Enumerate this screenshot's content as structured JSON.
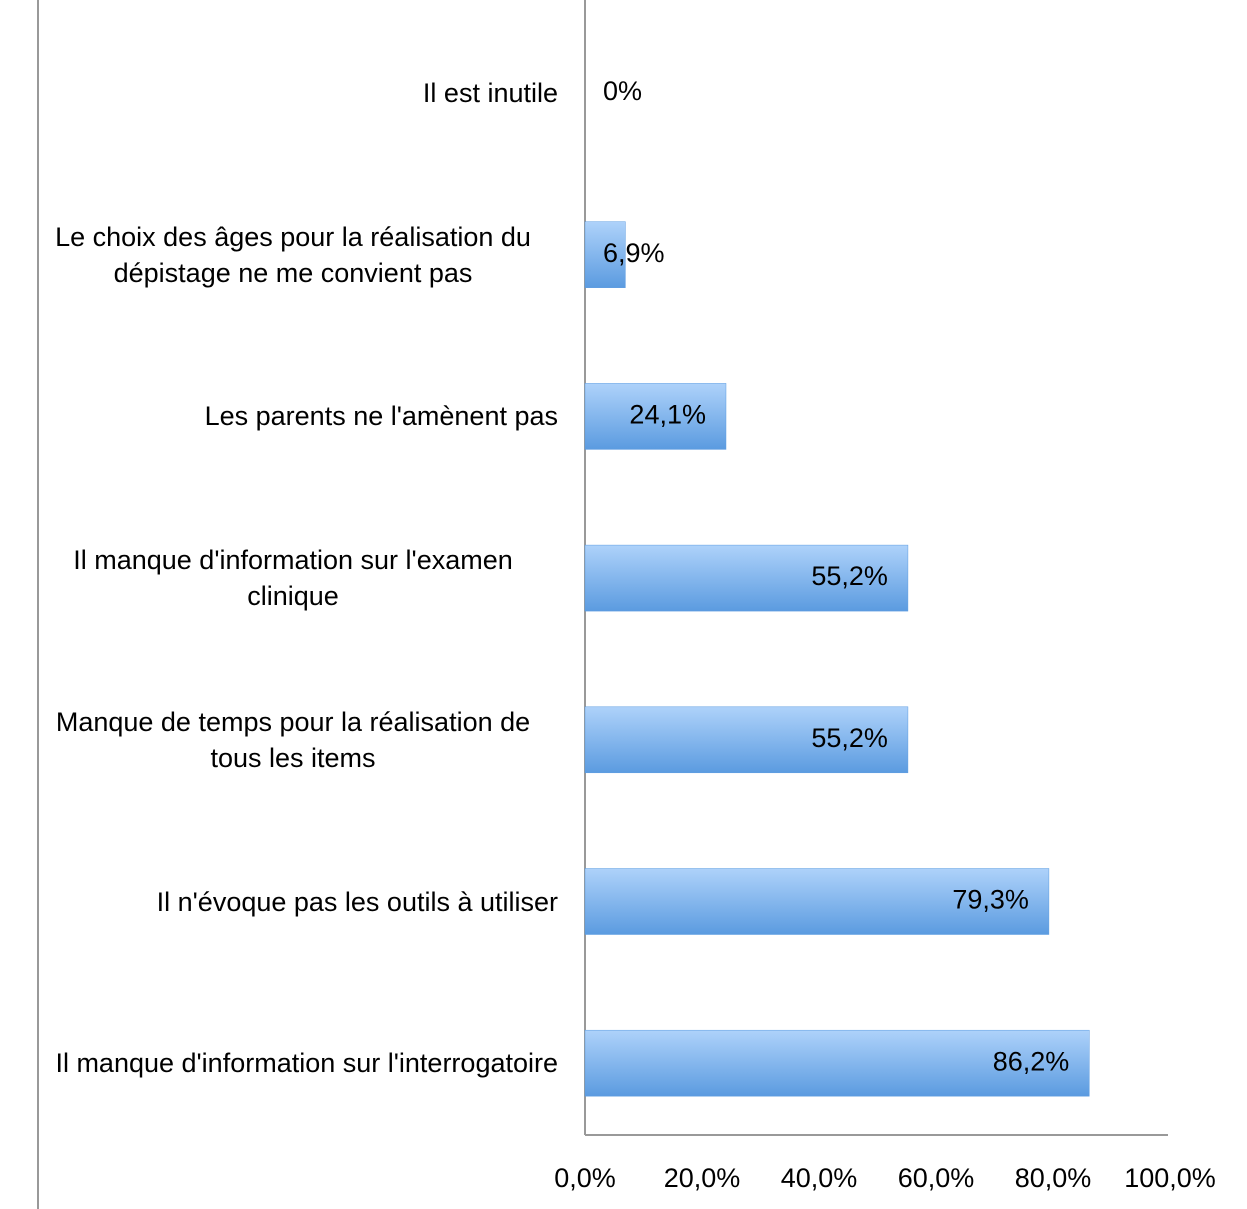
{
  "chart_data": {
    "type": "hbar",
    "categories": [
      "Il est inutile",
      "Le choix des âges pour la réalisation du dépistage ne me convient pas",
      "Les parents ne l'amènent pas",
      "Il manque d'information sur l'examen clinique",
      "Manque de temps pour la réalisation de tous les items",
      "Il n'évoque pas les outils à utiliser",
      "Il manque d'information sur l'interrogatoire"
    ],
    "values": [
      0,
      6.9,
      24.1,
      55.2,
      55.2,
      79.3,
      86.2
    ],
    "value_labels": [
      "0%",
      "6,9%",
      "24,1%",
      "55,2%",
      "55,2%",
      "79,3%",
      "86,2%"
    ],
    "color": "#5b9be0",
    "xlim": [
      0,
      100
    ],
    "xticks": [
      {
        "value": 0,
        "label": "0,0%"
      },
      {
        "value": 20,
        "label": "20,0%"
      },
      {
        "value": 40,
        "label": "40,0%"
      },
      {
        "value": 60,
        "label": "60,0%"
      },
      {
        "value": 80,
        "label": "80,0%"
      },
      {
        "value": 100,
        "label": "100,0%"
      }
    ],
    "grid": false
  }
}
